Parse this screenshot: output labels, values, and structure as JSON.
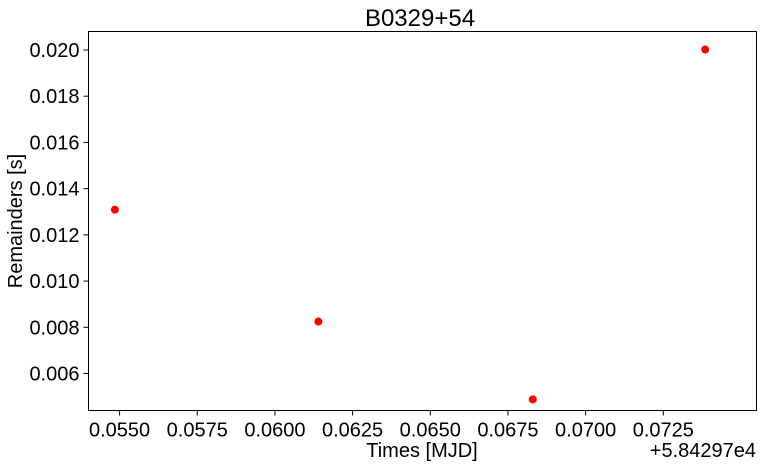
{
  "chart_data": {
    "type": "scatter",
    "title": "B0329+54",
    "xlabel": "Times [MJD]",
    "ylabel": "Remainders [s]",
    "x_offset_label": "+5.84297e4",
    "x_offset": 58429.7,
    "xlim": [
      0.054,
      0.0755
    ],
    "ylim": [
      0.0044,
      0.0208
    ],
    "x_ticks": [
      0.055,
      0.0575,
      0.06,
      0.0625,
      0.065,
      0.0675,
      0.07,
      0.0725
    ],
    "x_tick_labels": [
      "0.0550",
      "0.0575",
      "0.0600",
      "0.0625",
      "0.0650",
      "0.0675",
      "0.0700",
      "0.0725"
    ],
    "y_ticks": [
      0.006,
      0.008,
      0.01,
      0.012,
      0.014,
      0.016,
      0.018,
      0.02
    ],
    "y_tick_labels": [
      "0.006",
      "0.008",
      "0.010",
      "0.012",
      "0.014",
      "0.016",
      "0.018",
      "0.020"
    ],
    "grid": false,
    "marker_color": "#ff0000",
    "series": [
      {
        "x": [
          0.05485,
          0.0614,
          0.0683,
          0.07385
        ],
        "y": [
          0.01309,
          0.00825,
          0.00488,
          0.02002
        ]
      }
    ]
  }
}
